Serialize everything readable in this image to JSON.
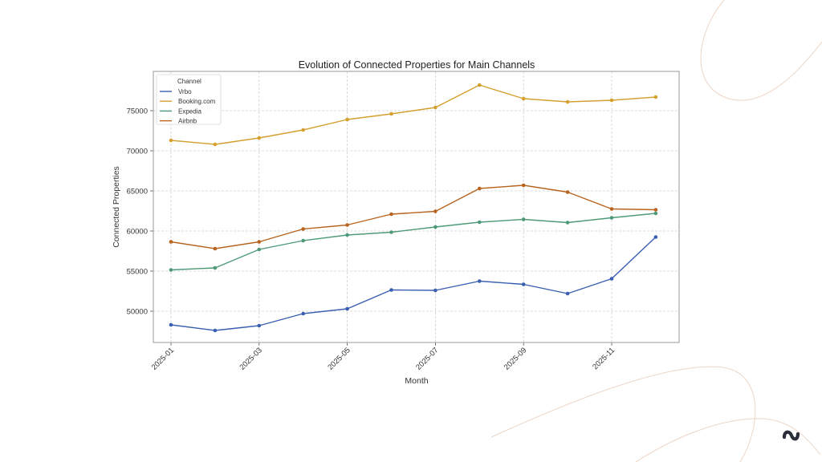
{
  "chart_data": {
    "type": "line",
    "title": "Evolution of Connected Properties for Main Channels",
    "xlabel": "Month",
    "ylabel": "Connected Properties",
    "x": [
      "2025-01",
      "2025-02",
      "2025-03",
      "2025-04",
      "2025-05",
      "2025-06",
      "2025-07",
      "2025-08",
      "2025-09",
      "2025-10",
      "2025-11",
      "2025-12"
    ],
    "xtick_labels": [
      "2025-01",
      "2025-03",
      "2025-05",
      "2025-07",
      "2025-09",
      "2025-11"
    ],
    "yticks": [
      50000,
      55000,
      60000,
      65000,
      70000,
      75000
    ],
    "ylim": [
      46100,
      79900
    ],
    "grid": true,
    "legend": {
      "title": "Channel",
      "placement": "top-left"
    },
    "series": [
      {
        "name": "Vrbo",
        "color": "#3a5fb0",
        "values": [
          48300,
          47600,
          48200,
          49700,
          50300,
          52650,
          52600,
          53750,
          53350,
          52200,
          54050,
          59250
        ]
      },
      {
        "name": "Booking.com",
        "color": "#d4a02e",
        "values": [
          71300,
          70800,
          71600,
          72600,
          73900,
          74600,
          75400,
          78200,
          76500,
          76100,
          76300,
          76700
        ]
      },
      {
        "name": "Expedia",
        "color": "#4e9a78",
        "values": [
          55150,
          55400,
          57700,
          58800,
          59500,
          59850,
          60500,
          61100,
          61450,
          61050,
          61650,
          62200
        ]
      },
      {
        "name": "Airbnb",
        "color": "#b8641e",
        "values": [
          58650,
          57800,
          58650,
          60250,
          60750,
          62100,
          62450,
          65300,
          65700,
          64850,
          62750,
          62650
        ]
      }
    ]
  },
  "decor": {
    "logo_icon": "wave-logo-icon",
    "logo_color": "#2b2f3a",
    "accent_line_color": "#ecd5c6"
  }
}
